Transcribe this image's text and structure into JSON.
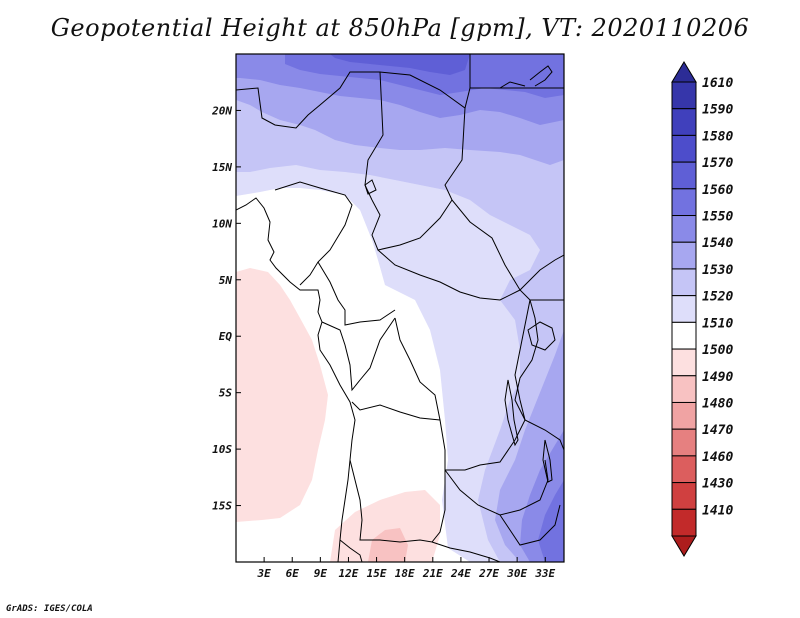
{
  "title": "Geopotential Height at 850hPa [gpm], VT: 2020110206",
  "credit": "GrADS: IGES/COLA",
  "map": {
    "lon_range": [
      0,
      35
    ],
    "lat_range": [
      -20,
      25
    ],
    "x_ticks": [
      "3E",
      "6E",
      "9E",
      "12E",
      "15E",
      "18E",
      "21E",
      "24E",
      "27E",
      "30E",
      "33E"
    ],
    "y_ticks": [
      "20N",
      "15N",
      "10N",
      "5N",
      "EQ",
      "5S",
      "10S",
      "15S"
    ],
    "grid": false
  },
  "colorbar": {
    "labels": [
      "1610",
      "1590",
      "1580",
      "1570",
      "1560",
      "1550",
      "1540",
      "1530",
      "1520",
      "1510",
      "1500",
      "1490",
      "1480",
      "1470",
      "1460",
      "1430",
      "1410"
    ],
    "colors": [
      "#2c2c96",
      "#3636aa",
      "#4040bc",
      "#4d4dcb",
      "#5f5fd6",
      "#7272e0",
      "#8a8ae8",
      "#a7a7f0",
      "#c5c5f6",
      "#dedefa",
      "#ffffff",
      "#fde0e0",
      "#f8c2c2",
      "#f0a3a3",
      "#e68080",
      "#dc5e5e",
      "#d04040",
      "#c22a2a",
      "#ad1d1d"
    ]
  },
  "field_colors": {
    "c1500": "#fde0e0",
    "c1510": "#ffffff",
    "c1520": "#dedefa",
    "c1530": "#c5c5f6",
    "c1540": "#a7a7f0",
    "c1550": "#8a8ae8",
    "c1560": "#7272e0",
    "c1570": "#5f5fd6",
    "pink_mid": "#f8c2c2"
  }
}
